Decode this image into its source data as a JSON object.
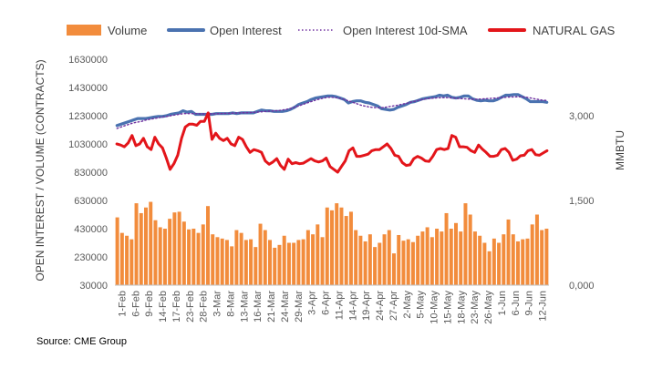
{
  "source_text": "Source: CME Group",
  "chart_data": {
    "type": "bar+line",
    "title": "",
    "ylabel_left": "OPEN INTEREST / VOLUME (CONTRACTS)",
    "ylabel_right": "MMBTU",
    "ylim_left": [
      30000,
      1630000
    ],
    "left_ticks": [
      "30000",
      "230000",
      "430000",
      "630000",
      "830000",
      "1030000",
      "1230000",
      "1430000",
      "1630000"
    ],
    "ylim_right": [
      0,
      4000
    ],
    "right_ticks": [
      "0,000",
      "1,500",
      "3,000"
    ],
    "right_tick_values": [
      0,
      1500,
      3000
    ],
    "x_tick_labels": [
      "1-Feb",
      "6-Feb",
      "9-Feb",
      "14-Feb",
      "17-Feb",
      "23-Feb",
      "28-Feb",
      "3-Mar",
      "8-Mar",
      "13-Mar",
      "16-Mar",
      "21-Mar",
      "24-Mar",
      "29-Mar",
      "3-Apr",
      "6-Apr",
      "11-Apr",
      "14-Apr",
      "19-Apr",
      "24-Apr",
      "27-Apr",
      "2-May",
      "5-May",
      "10-May",
      "15-May",
      "18-May",
      "23-May",
      "26-May",
      "1-Jun",
      "6-Jun",
      "9-Jun",
      "12-Jun"
    ],
    "legend": [
      {
        "label": "Volume",
        "color": "#f28c3c",
        "style": "bar"
      },
      {
        "label": "Open Interest",
        "color": "#4a72b0",
        "style": "line"
      },
      {
        "label": "Open Interest 10d-SMA",
        "color": "#7030a0",
        "style": "dotted"
      },
      {
        "label": "NATURAL GAS",
        "color": "#e3151a",
        "style": "line"
      }
    ],
    "series": [
      {
        "name": "Volume",
        "axis": "left",
        "values": [
          510000,
          400000,
          380000,
          355000,
          610000,
          540000,
          580000,
          620000,
          490000,
          440000,
          430000,
          500000,
          545000,
          550000,
          480000,
          425000,
          430000,
          400000,
          460000,
          590000,
          390000,
          370000,
          360000,
          350000,
          305000,
          420000,
          400000,
          350000,
          355000,
          300000,
          465000,
          420000,
          350000,
          295000,
          315000,
          380000,
          330000,
          330000,
          350000,
          355000,
          420000,
          390000,
          460000,
          370000,
          580000,
          560000,
          610000,
          580000,
          520000,
          550000,
          420000,
          380000,
          340000,
          390000,
          300000,
          330000,
          390000,
          420000,
          255000,
          385000,
          345000,
          355000,
          335000,
          380000,
          410000,
          440000,
          370000,
          430000,
          410000,
          540000,
          430000,
          470000,
          410000,
          610000,
          530000,
          410000,
          380000,
          330000,
          270000,
          360000,
          330000,
          390000,
          495000,
          390000,
          340000,
          355000,
          360000,
          460000,
          530000,
          420000,
          430000
        ]
      },
      {
        "name": "Open Interest",
        "axis": "left",
        "values": [
          1160000,
          1170000,
          1180000,
          1190000,
          1200000,
          1210000,
          1210000,
          1210000,
          1215000,
          1220000,
          1225000,
          1225000,
          1230000,
          1240000,
          1245000,
          1250000,
          1265000,
          1255000,
          1260000,
          1240000,
          1240000,
          1240000,
          1240000,
          1240000,
          1245000,
          1245000,
          1245000,
          1245000,
          1250000,
          1245000,
          1250000,
          1250000,
          1250000,
          1250000,
          1260000,
          1270000,
          1265000,
          1265000,
          1260000,
          1260000,
          1260000,
          1265000,
          1275000,
          1290000,
          1310000,
          1320000,
          1330000,
          1345000,
          1355000,
          1360000,
          1365000,
          1370000,
          1370000,
          1365000,
          1355000,
          1345000,
          1320000,
          1330000,
          1335000,
          1335000,
          1325000,
          1320000,
          1310000,
          1300000,
          1280000,
          1275000,
          1270000,
          1275000,
          1290000,
          1300000,
          1310000,
          1325000,
          1330000,
          1340000,
          1350000,
          1355000,
          1360000,
          1365000,
          1375000,
          1370000,
          1375000,
          1360000,
          1355000,
          1360000,
          1370000,
          1370000,
          1350000,
          1340000,
          1335000,
          1340000,
          1335000,
          1335000,
          1345000,
          1360000,
          1375000,
          1375000,
          1380000,
          1380000,
          1365000,
          1350000,
          1330000,
          1330000,
          1330000,
          1330000,
          1325000
        ]
      },
      {
        "name": "Open Interest 10d-SMA",
        "axis": "left",
        "values": [
          1140000,
          1150000,
          1160000,
          1170000,
          1180000,
          1185000,
          1190000,
          1200000,
          1205000,
          1210000,
          1215000,
          1220000,
          1225000,
          1230000,
          1235000,
          1240000,
          1245000,
          1245000,
          1245000,
          1245000,
          1243000,
          1243000,
          1243000,
          1243000,
          1244000,
          1245000,
          1246000,
          1247000,
          1248000,
          1249000,
          1250000,
          1251000,
          1252000,
          1254000,
          1256000,
          1258000,
          1260000,
          1262000,
          1264000,
          1266000,
          1270000,
          1275000,
          1282000,
          1290000,
          1300000,
          1310000,
          1320000,
          1330000,
          1340000,
          1348000,
          1355000,
          1360000,
          1360000,
          1358000,
          1352000,
          1345000,
          1335000,
          1325000,
          1315000,
          1305000,
          1298000,
          1292000,
          1288000,
          1286000,
          1287000,
          1290000,
          1295000,
          1300000,
          1305000,
          1312000,
          1318000,
          1325000,
          1332000,
          1340000,
          1345000,
          1350000,
          1353000,
          1355000,
          1357000,
          1358000,
          1358000,
          1356000,
          1354000,
          1352000,
          1350000,
          1348000,
          1347000,
          1347000,
          1348000,
          1350000,
          1352000,
          1354000,
          1356000,
          1358000,
          1360000,
          1362000,
          1363000,
          1364000,
          1363000,
          1360000,
          1356000,
          1350000,
          1345000,
          1340000,
          1338000
        ]
      },
      {
        "name": "NATURAL GAS",
        "axis": "right",
        "values": [
          2500,
          2480,
          2450,
          2520,
          2650,
          2470,
          2500,
          2600,
          2450,
          2400,
          2620,
          2500,
          2430,
          2250,
          2050,
          2150,
          2300,
          2600,
          2800,
          2850,
          2850,
          2830,
          2900,
          2900,
          3050,
          2580,
          2690,
          2600,
          2560,
          2600,
          2500,
          2470,
          2620,
          2580,
          2450,
          2350,
          2400,
          2380,
          2350,
          2200,
          2140,
          2180,
          2240,
          2120,
          2050,
          2230,
          2150,
          2170,
          2150,
          2160,
          2200,
          2240,
          2200,
          2180,
          2200,
          2250,
          2100,
          2050,
          2000,
          2100,
          2200,
          2380,
          2430,
          2280,
          2280,
          2300,
          2320,
          2380,
          2400,
          2400,
          2450,
          2500,
          2420,
          2300,
          2280,
          2170,
          2120,
          2130,
          2240,
          2280,
          2250,
          2200,
          2190,
          2280,
          2400,
          2420,
          2400,
          2420,
          2650,
          2620,
          2450,
          2450,
          2440,
          2380,
          2350,
          2480,
          2410,
          2350,
          2280,
          2280,
          2300,
          2400,
          2420,
          2350,
          2210,
          2230,
          2290,
          2300,
          2380,
          2400,
          2310,
          2300,
          2340,
          2380
        ]
      }
    ],
    "colors": {
      "volume": "#f28c3c",
      "open_interest": "#4a72b0",
      "sma": "#7030a0",
      "natural_gas": "#e3151a",
      "axis": "#bfbfbf"
    }
  }
}
